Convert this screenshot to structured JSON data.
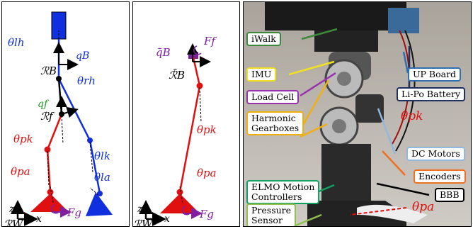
{
  "panel_a": {
    "labels": {
      "theta_lh": "θlh",
      "q_B": "qB",
      "R_B": "ℛB",
      "theta_rh": "θrh",
      "q_f": "qf",
      "R_f": "ℛf",
      "theta_pk": "θpk",
      "theta_lk": "θlk",
      "theta_pa": "θpa",
      "theta_la": "θla",
      "F_g": "Fg",
      "z": "z",
      "x": "x",
      "R_W": "ℛW"
    }
  },
  "panel_b": {
    "labels": {
      "q_B_bar": "q̄B",
      "F_f": "Ff",
      "R_B_bar": "ℛ̄B",
      "theta_pk": "θpk",
      "theta_pa": "θpa",
      "F_g": "Fg",
      "z": "z",
      "x": "x",
      "R_W": "ℛW"
    }
  },
  "panel_c": {
    "callouts": [
      {
        "key": "iwalk",
        "text": "iWalk",
        "color": "#3a8a3a"
      },
      {
        "key": "imu",
        "text": "IMU",
        "color": "#f0e020"
      },
      {
        "key": "load_cell",
        "text": "Load Cell",
        "color": "#9a30b0"
      },
      {
        "key": "harmonic_1",
        "text": "Harmonic",
        "color": "#f0b010"
      },
      {
        "key": "harmonic_2",
        "text": "Gearboxes",
        "color": "#f0b010"
      },
      {
        "key": "elmo_1",
        "text": "ELMO Motion",
        "color": "#10a060"
      },
      {
        "key": "elmo_2",
        "text": "Controllers",
        "color": "#10a060"
      },
      {
        "key": "pressure_1",
        "text": "Pressure",
        "color": "#90c050"
      },
      {
        "key": "pressure_2",
        "text": "Sensor",
        "color": "#90c050"
      },
      {
        "key": "up_board",
        "text": "UP Board",
        "color": "#3070b0"
      },
      {
        "key": "lipo",
        "text": "Li-Po Battery",
        "color": "#203060"
      },
      {
        "key": "dc_motors",
        "text": "DC Motors",
        "color": "#90b8e0"
      },
      {
        "key": "encoders",
        "text": "Encoders",
        "color": "#f07020"
      },
      {
        "key": "bbb",
        "text": "BBB",
        "color": "#000000"
      }
    ],
    "theta_pk": "θpk",
    "theta_pa": "θpa"
  },
  "colors": {
    "red": "#e01010",
    "blue": "#1030e0",
    "purple": "#8020a0",
    "green": "#20a020"
  }
}
